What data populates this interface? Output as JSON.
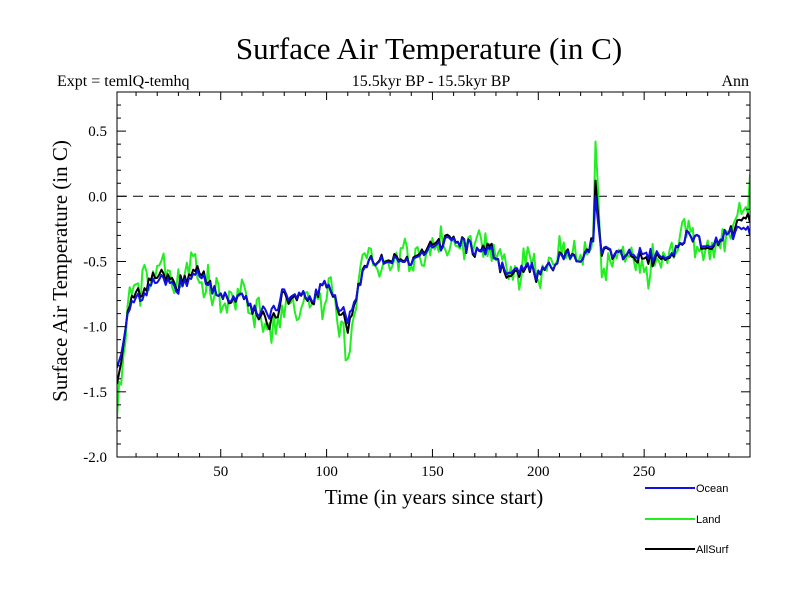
{
  "chart_data": {
    "type": "line",
    "title": "Surface Air Temperature (in C)",
    "subtitle": "15.5kyr BP - 15.5kyr BP",
    "expt_label": "Expt = temlQ-temhq",
    "period_label": "Ann",
    "xlabel": "Time (in years since start)",
    "ylabel": "Surface Air Temperature (in C)",
    "xlim": [
      1,
      300
    ],
    "ylim": [
      -2.0,
      0.8
    ],
    "x_ticks": [
      50,
      100,
      150,
      200,
      250
    ],
    "y_ticks": [
      "-2.0",
      "-1.5",
      "-1.0",
      "-0.5",
      "0.0",
      "0.5"
    ],
    "reference_line": 0.0,
    "legend_position": "bottom-right",
    "series": [
      {
        "name": "Ocean",
        "color": "#1010e0",
        "anchors": [
          [
            1,
            -1.28
          ],
          [
            4,
            -1.1
          ],
          [
            8,
            -0.8
          ],
          [
            15,
            -0.72
          ],
          [
            22,
            -0.6
          ],
          [
            30,
            -0.72
          ],
          [
            38,
            -0.58
          ],
          [
            45,
            -0.7
          ],
          [
            55,
            -0.78
          ],
          [
            60,
            -0.74
          ],
          [
            68,
            -0.86
          ],
          [
            72,
            -0.9
          ],
          [
            80,
            -0.74
          ],
          [
            90,
            -0.8
          ],
          [
            100,
            -0.7
          ],
          [
            105,
            -0.8
          ],
          [
            110,
            -0.95
          ],
          [
            115,
            -0.72
          ],
          [
            120,
            -0.45
          ],
          [
            130,
            -0.52
          ],
          [
            140,
            -0.48
          ],
          [
            150,
            -0.4
          ],
          [
            160,
            -0.32
          ],
          [
            170,
            -0.42
          ],
          [
            175,
            -0.38
          ],
          [
            185,
            -0.55
          ],
          [
            195,
            -0.52
          ],
          [
            200,
            -0.6
          ],
          [
            210,
            -0.45
          ],
          [
            220,
            -0.5
          ],
          [
            226,
            -0.35
          ],
          [
            227,
            0.0
          ],
          [
            230,
            -0.45
          ],
          [
            240,
            -0.45
          ],
          [
            250,
            -0.45
          ],
          [
            260,
            -0.48
          ],
          [
            270,
            -0.3
          ],
          [
            280,
            -0.4
          ],
          [
            290,
            -0.3
          ],
          [
            300,
            -0.3
          ]
        ],
        "noise": 0.07,
        "seed": 11
      },
      {
        "name": "Land",
        "color": "#22ee22",
        "anchors": [
          [
            1,
            -1.62
          ],
          [
            4,
            -1.2
          ],
          [
            8,
            -0.7
          ],
          [
            15,
            -0.6
          ],
          [
            22,
            -0.5
          ],
          [
            30,
            -0.65
          ],
          [
            38,
            -0.5
          ],
          [
            45,
            -0.68
          ],
          [
            55,
            -0.8
          ],
          [
            60,
            -0.75
          ],
          [
            68,
            -0.9
          ],
          [
            72,
            -1.15
          ],
          [
            80,
            -0.8
          ],
          [
            90,
            -0.85
          ],
          [
            100,
            -0.72
          ],
          [
            105,
            -0.82
          ],
          [
            110,
            -1.2
          ],
          [
            115,
            -0.7
          ],
          [
            120,
            -0.42
          ],
          [
            130,
            -0.5
          ],
          [
            140,
            -0.45
          ],
          [
            150,
            -0.35
          ],
          [
            160,
            -0.3
          ],
          [
            170,
            -0.45
          ],
          [
            175,
            -0.3
          ],
          [
            185,
            -0.6
          ],
          [
            195,
            -0.55
          ],
          [
            200,
            -0.62
          ],
          [
            210,
            -0.42
          ],
          [
            220,
            -0.5
          ],
          [
            226,
            -0.3
          ],
          [
            227,
            0.42
          ],
          [
            230,
            -0.5
          ],
          [
            240,
            -0.45
          ],
          [
            250,
            -0.55
          ],
          [
            260,
            -0.5
          ],
          [
            270,
            -0.3
          ],
          [
            280,
            -0.45
          ],
          [
            290,
            -0.3
          ],
          [
            300,
            0.1
          ]
        ],
        "noise": 0.17,
        "seed": 27
      },
      {
        "name": "AllSurf",
        "color": "#000000",
        "anchors": [
          [
            1,
            -1.4
          ],
          [
            4,
            -1.12
          ],
          [
            8,
            -0.76
          ],
          [
            15,
            -0.68
          ],
          [
            22,
            -0.56
          ],
          [
            30,
            -0.7
          ],
          [
            38,
            -0.55
          ],
          [
            45,
            -0.69
          ],
          [
            55,
            -0.79
          ],
          [
            60,
            -0.74
          ],
          [
            68,
            -0.87
          ],
          [
            72,
            -0.98
          ],
          [
            80,
            -0.76
          ],
          [
            90,
            -0.81
          ],
          [
            100,
            -0.71
          ],
          [
            105,
            -0.81
          ],
          [
            110,
            -1.02
          ],
          [
            115,
            -0.71
          ],
          [
            120,
            -0.44
          ],
          [
            130,
            -0.51
          ],
          [
            140,
            -0.47
          ],
          [
            150,
            -0.38
          ],
          [
            160,
            -0.31
          ],
          [
            170,
            -0.43
          ],
          [
            175,
            -0.35
          ],
          [
            185,
            -0.57
          ],
          [
            195,
            -0.53
          ],
          [
            200,
            -0.61
          ],
          [
            210,
            -0.44
          ],
          [
            220,
            -0.5
          ],
          [
            226,
            -0.33
          ],
          [
            227,
            0.12
          ],
          [
            230,
            -0.47
          ],
          [
            240,
            -0.45
          ],
          [
            250,
            -0.49
          ],
          [
            260,
            -0.49
          ],
          [
            270,
            -0.3
          ],
          [
            280,
            -0.42
          ],
          [
            290,
            -0.3
          ],
          [
            300,
            -0.2
          ]
        ],
        "noise": 0.08,
        "seed": 11
      }
    ]
  }
}
